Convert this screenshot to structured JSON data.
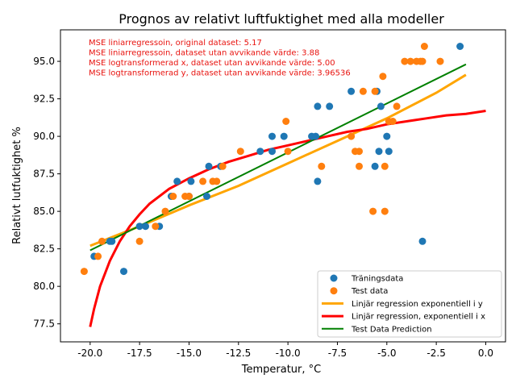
{
  "chart_data": {
    "type": "scatter",
    "title": "Prognos av relativt luftfuktighet med alla modeller",
    "xlabel": "Temperatur, °C",
    "ylabel": "Relativt lutfuktighet %",
    "xlim": [
      -21.5,
      1.0
    ],
    "ylim": [
      76.3,
      97.1
    ],
    "xticks": [
      "-20.0",
      "-17.5",
      "-15.0",
      "-12.5",
      "-10.0",
      "-7.5",
      "-5.0",
      "-2.5",
      "0.0"
    ],
    "yticks": [
      "77.5",
      "80.0",
      "82.5",
      "85.0",
      "87.5",
      "90.0",
      "92.5",
      "95.0"
    ],
    "grid": false,
    "legend_position": "lower-right",
    "annotations": [
      "MSE liniarregressoin, original dataset: 5.17",
      "MSE liniarregressoin, dataset utan avvikande värde: 3.88",
      "MSE logtransformerad x, dataset utan avvikande värde: 5.00",
      "MSE logtransformerad y, dataset utan avvikande värde: 3.96536"
    ],
    "colors": {
      "train": "#1f77b4",
      "test": "#ff7f0e",
      "exp_y": "#ffa500",
      "exp_x": "#ff0000",
      "pred": "#008000",
      "annotation": "#e8130f"
    },
    "series": [
      {
        "name": "Träningsdata",
        "kind": "scatter",
        "points": [
          [
            -19.8,
            82
          ],
          [
            -19.0,
            83
          ],
          [
            -18.9,
            83
          ],
          [
            -18.3,
            81
          ],
          [
            -17.5,
            84
          ],
          [
            -17.2,
            84
          ],
          [
            -16.5,
            84
          ],
          [
            -15.9,
            86
          ],
          [
            -15.6,
            87
          ],
          [
            -15.0,
            86
          ],
          [
            -14.9,
            87
          ],
          [
            -14.1,
            86
          ],
          [
            -14.0,
            88
          ],
          [
            -13.4,
            88
          ],
          [
            -11.4,
            89
          ],
          [
            -10.8,
            89
          ],
          [
            -10.8,
            90
          ],
          [
            -10.2,
            90
          ],
          [
            -8.8,
            90
          ],
          [
            -8.6,
            90
          ],
          [
            -8.5,
            87
          ],
          [
            -8.5,
            92
          ],
          [
            -7.9,
            92
          ],
          [
            -6.8,
            93
          ],
          [
            -5.5,
            93
          ],
          [
            -5.3,
            92
          ],
          [
            -5.6,
            88
          ],
          [
            -5.4,
            89
          ],
          [
            -5.0,
            90
          ],
          [
            -4.9,
            89
          ],
          [
            -3.2,
            83
          ],
          [
            -1.3,
            96
          ]
        ]
      },
      {
        "name": "Test data",
        "kind": "scatter",
        "points": [
          [
            -20.3,
            81
          ],
          [
            -19.6,
            82
          ],
          [
            -19.4,
            83
          ],
          [
            -17.5,
            83
          ],
          [
            -16.7,
            84
          ],
          [
            -16.2,
            85
          ],
          [
            -15.8,
            86
          ],
          [
            -15.2,
            86
          ],
          [
            -15.0,
            86
          ],
          [
            -14.3,
            87
          ],
          [
            -13.8,
            87
          ],
          [
            -13.6,
            87
          ],
          [
            -13.3,
            88
          ],
          [
            -12.4,
            89
          ],
          [
            -10.0,
            89
          ],
          [
            -10.1,
            91
          ],
          [
            -8.3,
            88
          ],
          [
            -6.8,
            90
          ],
          [
            -6.6,
            89
          ],
          [
            -6.4,
            89
          ],
          [
            -6.4,
            88
          ],
          [
            -6.2,
            93
          ],
          [
            -5.6,
            93
          ],
          [
            -5.7,
            85
          ],
          [
            -5.1,
            85
          ],
          [
            -5.1,
            88
          ],
          [
            -5.2,
            94
          ],
          [
            -4.9,
            91
          ],
          [
            -4.7,
            91
          ],
          [
            -4.5,
            92
          ],
          [
            -4.1,
            95
          ],
          [
            -3.8,
            95
          ],
          [
            -3.5,
            95
          ],
          [
            -3.3,
            95
          ],
          [
            -3.2,
            95
          ],
          [
            -3.1,
            96
          ],
          [
            -2.3,
            95
          ]
        ]
      },
      {
        "name": "Linjär regression exponentiell i y",
        "kind": "line",
        "points": [
          [
            -20.0,
            82.7
          ],
          [
            -17.5,
            84.0
          ],
          [
            -15.0,
            85.4
          ],
          [
            -12.5,
            86.7
          ],
          [
            -10.0,
            88.2
          ],
          [
            -7.5,
            89.7
          ],
          [
            -5.0,
            91.2
          ],
          [
            -2.5,
            92.9
          ],
          [
            -1.0,
            94.1
          ]
        ]
      },
      {
        "name": "Linjär regression, exponentiell i x",
        "kind": "line",
        "points": [
          [
            -20.0,
            77.3
          ],
          [
            -19.8,
            78.5
          ],
          [
            -19.5,
            80.0
          ],
          [
            -19.0,
            81.7
          ],
          [
            -18.5,
            83.0
          ],
          [
            -18.0,
            84.0
          ],
          [
            -17.5,
            84.8
          ],
          [
            -17.0,
            85.5
          ],
          [
            -16.0,
            86.5
          ],
          [
            -15.0,
            87.2
          ],
          [
            -14.0,
            87.8
          ],
          [
            -13.0,
            88.3
          ],
          [
            -12.0,
            88.7
          ],
          [
            -11.0,
            89.1
          ],
          [
            -10.0,
            89.4
          ],
          [
            -9.0,
            89.7
          ],
          [
            -8.0,
            90.0
          ],
          [
            -7.0,
            90.3
          ],
          [
            -6.0,
            90.5
          ],
          [
            -5.0,
            90.8
          ],
          [
            -4.0,
            91.0
          ],
          [
            -3.0,
            91.2
          ],
          [
            -2.0,
            91.4
          ],
          [
            -1.0,
            91.5
          ],
          [
            0.0,
            91.7
          ]
        ]
      },
      {
        "name": "Test Data Prediction",
        "kind": "line",
        "points": [
          [
            -20.0,
            82.4
          ],
          [
            -1.0,
            94.8
          ]
        ]
      }
    ]
  }
}
